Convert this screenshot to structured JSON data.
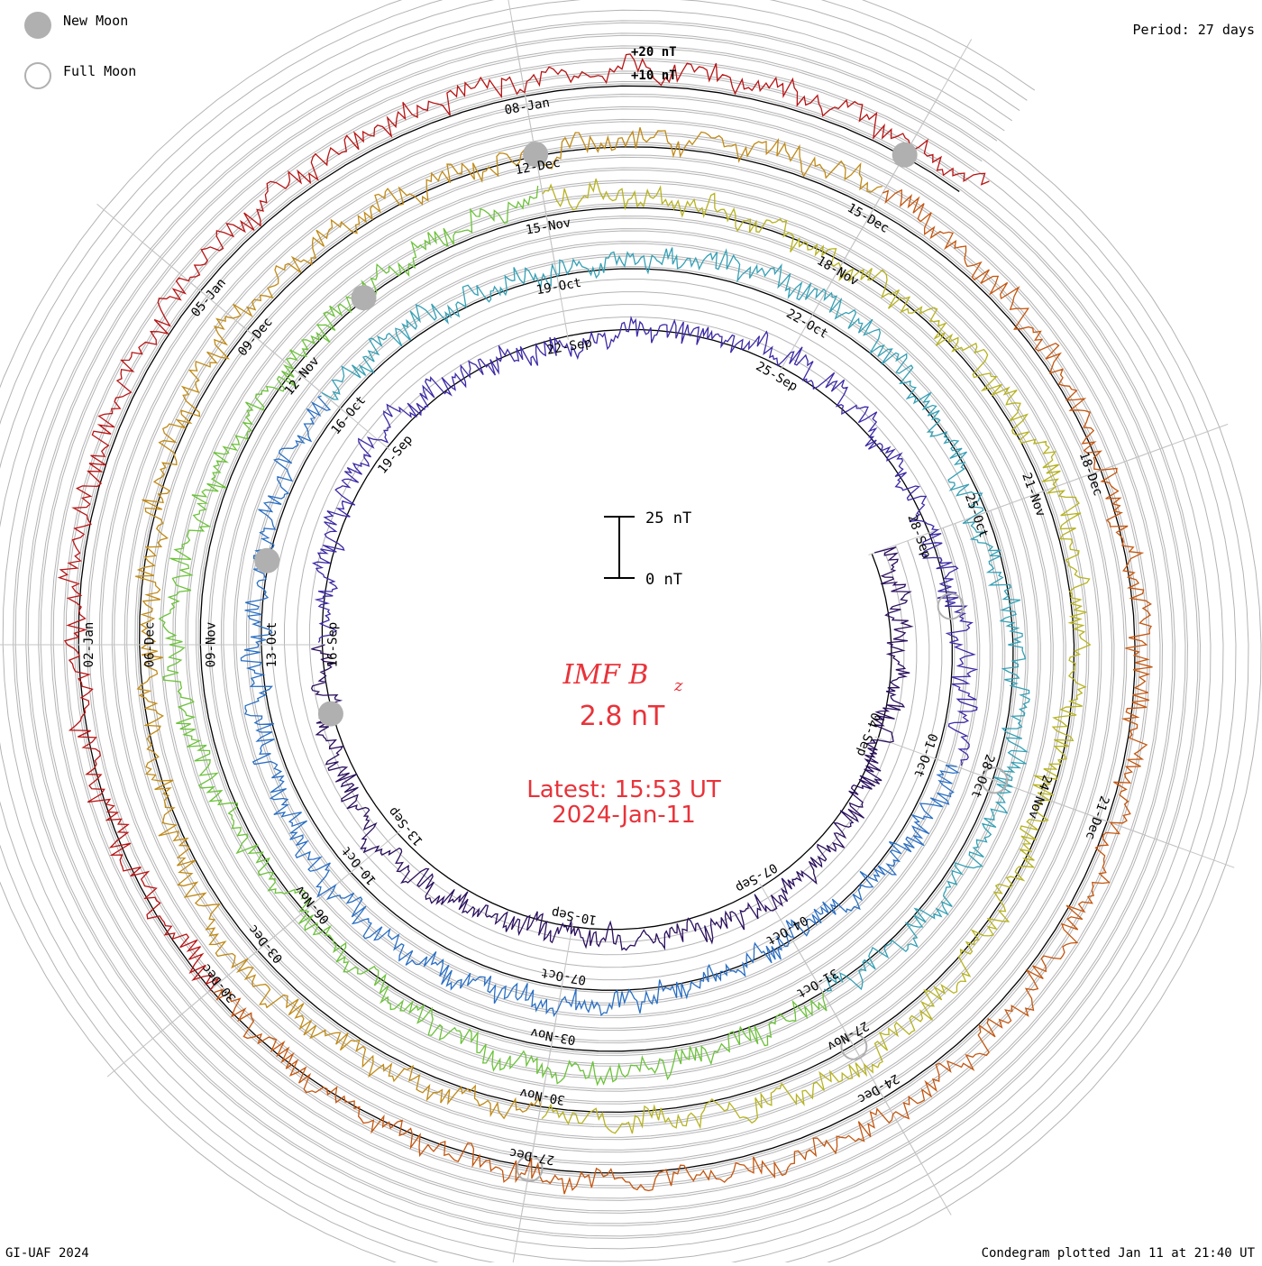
{
  "chart_data": {
    "type": "condegram",
    "title": "IMF B",
    "title_subscript": "z",
    "current_value": "2.8 nT",
    "latest_label": "Latest: 15:53 UT",
    "latest_date": "2024-Jan-11",
    "period": "Period: 27 days",
    "scale_labels": [
      "+20 nT",
      "+10 nT"
    ],
    "scale_bar": {
      "top": "25 nT",
      "bottom": "0 nT"
    },
    "legend": {
      "new_moon": "New Moon",
      "full_moon": "Full Moon"
    },
    "footer_left": "GI-UAF 2024",
    "footer_right": "Condegram plotted Jan 11 at 21:40 UT",
    "start_date": "2023-09-01",
    "end_date": "2024-01-11",
    "spiral": {
      "r_start": 295,
      "r_end": 627,
      "angle_start_deg": 20
    },
    "date_ticks": [
      "04-Sep",
      "07-Sep",
      "10-Sep",
      "13-Sep",
      "16-Sep",
      "19-Sep",
      "22-Sep",
      "25-Sep",
      "28-Sep",
      "01-Oct",
      "04-Oct",
      "07-Oct",
      "10-Oct",
      "13-Oct",
      "16-Oct",
      "19-Oct",
      "22-Oct",
      "25-Oct",
      "28-Oct",
      "31-Oct",
      "03-Nov",
      "06-Nov",
      "09-Nov",
      "12-Nov",
      "15-Nov",
      "18-Nov",
      "21-Nov",
      "24-Nov",
      "27-Nov",
      "30-Nov",
      "03-Dec",
      "06-Dec",
      "09-Dec",
      "12-Dec",
      "15-Dec",
      "18-Dec",
      "21-Dec",
      "24-Dec",
      "27-Dec",
      "30-Dec",
      "02-Jan",
      "05-Jan",
      "08-Jan"
    ],
    "new_moons": [
      "2023-09-15",
      "2023-10-14",
      "2023-11-13",
      "2023-12-12",
      "2024-01-11"
    ],
    "full_moons": [
      "2023-09-29",
      "2023-10-28",
      "2023-11-27",
      "2023-12-27"
    ],
    "turn_colors": [
      "#2a0f5e",
      "#3b2aa6",
      "#2a6fc4",
      "#35a0b5",
      "#6cc23a",
      "#b7b322",
      "#c08a18",
      "#c4560f",
      "#b81414"
    ],
    "series": [
      {
        "name": "IMF Bz (nT)",
        "sample_days": [
          0,
          3,
          6,
          9,
          12,
          15,
          18,
          21,
          24,
          27,
          30,
          33,
          36,
          39,
          42,
          45,
          48,
          51,
          54,
          57,
          60,
          63,
          66,
          69,
          72,
          75,
          78,
          81,
          84,
          87,
          90,
          93,
          96,
          99,
          102,
          105,
          108,
          114,
          120,
          126,
          130
        ],
        "values": [
          2,
          -3,
          4,
          -2,
          6,
          -5,
          3,
          -8,
          2,
          -4,
          5,
          -6,
          3,
          7,
          -2,
          4,
          -3,
          5,
          -9,
          3,
          -2,
          6,
          -4,
          8,
          -3,
          4,
          -5,
          3,
          -7,
          5,
          -2,
          6,
          -8,
          3,
          -4,
          5,
          -3,
          4,
          -6,
          3,
          2.8
        ]
      }
    ]
  }
}
